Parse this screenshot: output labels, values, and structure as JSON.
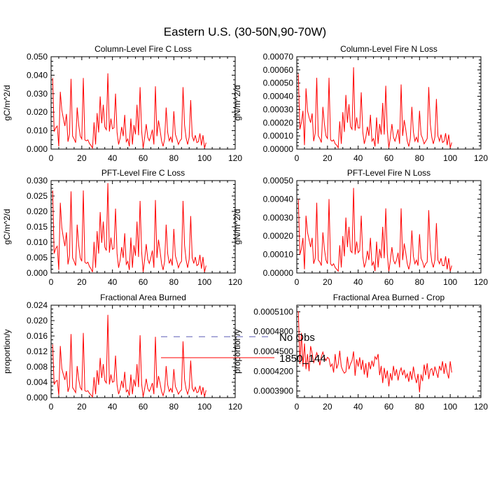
{
  "figure_title": "Eastern U.S. (30-50N,90-70W)",
  "legend": {
    "entries": [
      {
        "label": "No Obs",
        "color": "#5a5ab4",
        "style": "dashed"
      },
      {
        "label": "1850_144",
        "color": "#ff0000",
        "style": "solid"
      }
    ]
  },
  "colors": {
    "series": "#ff0000",
    "axis": "#000000",
    "background": "#ffffff"
  },
  "chart_data": [
    {
      "type": "line",
      "title": "Column-Level Fire C Loss",
      "ylabel": "gC/m^2/d",
      "xlabel": "",
      "xlim": [
        0,
        120
      ],
      "xticks": [
        0,
        20,
        40,
        60,
        80,
        100,
        120
      ],
      "xtick_labels": [
        "0",
        "20",
        "40",
        "60",
        "80",
        "100",
        "120"
      ],
      "ylim": [
        0,
        0.05
      ],
      "yticks": [
        0,
        0.01,
        0.02,
        0.03,
        0.04,
        0.05
      ],
      "ytick_labels": [
        "0.000",
        "0.010",
        "0.020",
        "0.030",
        "0.040",
        "0.050"
      ],
      "series": [
        {
          "name": "1850_144",
          "x_start": 1,
          "values": [
            0.0385,
            0.0095,
            0.0115,
            0.0125,
            0.0015,
            0.031,
            0.021,
            0.0165,
            0.0125,
            0.019,
            0.004,
            0.008,
            0.038,
            0.007,
            0.0055,
            0.0035,
            0.0225,
            0.013,
            0.007,
            0.0055,
            0.0385,
            0.005,
            0.0045,
            0.005,
            0.003,
            0.002,
            0.0005,
            0.0145,
            0.0025,
            0.0195,
            0.009,
            0.0285,
            0.014,
            0.024,
            0.012,
            0.0105,
            0.041,
            0.0095,
            0.0165,
            0.011,
            0.0115,
            0.03,
            0.009,
            0.0025,
            0.006,
            0.012,
            0.007,
            0.0185,
            0.004,
            0.0055,
            0.0015,
            0.0165,
            0.0025,
            0.013,
            0.008,
            0.024,
            0.0075,
            0.0335,
            0.01,
            0.0005,
            0.0065,
            0.0135,
            0.0065,
            0.0045,
            0.007,
            0.0105,
            0.0025,
            0.034,
            0.007,
            0.0155,
            0.0105,
            0.0045,
            0.0015,
            0.0055,
            0.0225,
            0.009,
            0.0045,
            0.0065,
            0.0035,
            0.0205,
            0.008,
            0.0055,
            0.0025,
            0.0045,
            0.0055,
            0.0335,
            0.013,
            0.006,
            0.0025,
            0.0065,
            0.0265,
            0.007,
            0.0045,
            0.0075,
            0.0035,
            0.004,
            0.0085,
            0.002,
            0.0075,
            0.0005,
            0.0035
          ]
        }
      ]
    },
    {
      "type": "line",
      "title": "Column-Level Fire N Loss",
      "ylabel": "gN/m^2/d",
      "xlabel": "",
      "xlim": [
        0,
        120
      ],
      "xticks": [
        0,
        20,
        40,
        60,
        80,
        100,
        120
      ],
      "xtick_labels": [
        "0",
        "20",
        "40",
        "60",
        "80",
        "100",
        "120"
      ],
      "ylim": [
        0,
        0.0007
      ],
      "yticks": [
        0,
        0.0001,
        0.0002,
        0.0003,
        0.0004,
        0.0005,
        0.0006,
        0.0007
      ],
      "ytick_labels": [
        "0.00000",
        "0.00010",
        "0.00020",
        "0.00030",
        "0.00040",
        "0.00050",
        "0.00060",
        "0.00070"
      ],
      "series": [
        {
          "name": "1850_144",
          "x_start": 1,
          "values": [
            0.00057,
            0.00015,
            0.0002,
            0.00029,
            3e-05,
            0.00046,
            0.00029,
            0.00024,
            0.0002,
            0.00027,
            6e-05,
            0.00012,
            0.00054,
            0.0001,
            8e-05,
            5e-05,
            0.00032,
            0.00019,
            0.0001,
            8e-05,
            0.00054,
            7e-05,
            6e-05,
            7e-05,
            4e-05,
            3e-05,
            1e-05,
            0.00021,
            4e-05,
            0.00028,
            0.00013,
            0.00041,
            0.0002,
            0.00034,
            0.00017,
            0.00015,
            0.00062,
            0.00014,
            0.00024,
            0.00016,
            0.00016,
            0.00043,
            0.00013,
            4e-05,
            9e-05,
            0.00017,
            0.0001,
            0.00026,
            6e-05,
            8e-05,
            2e-05,
            0.00024,
            4e-05,
            0.00019,
            0.00011,
            0.00035,
            0.00011,
            0.00048,
            0.00014,
            1e-05,
            9e-05,
            0.00019,
            9e-05,
            6e-05,
            0.0001,
            0.00015,
            4e-05,
            0.00049,
            0.0001,
            0.00022,
            0.00015,
            6e-05,
            2e-05,
            8e-05,
            0.00032,
            0.00013,
            6e-05,
            9e-05,
            5e-05,
            0.00029,
            0.00011,
            8e-05,
            4e-05,
            6e-05,
            8e-05,
            0.00047,
            0.00019,
            9e-05,
            4e-05,
            9e-05,
            0.00038,
            0.0001,
            6e-05,
            0.00011,
            5e-05,
            6e-05,
            0.00012,
            3e-05,
            0.00011,
            1e-05,
            5e-05
          ]
        }
      ]
    },
    {
      "type": "line",
      "title": "PFT-Level Fire C Loss",
      "ylabel": "gC/m^2/d",
      "xlabel": "",
      "xlim": [
        0,
        120
      ],
      "xticks": [
        0,
        20,
        40,
        60,
        80,
        100,
        120
      ],
      "xtick_labels": [
        "0",
        "20",
        "40",
        "60",
        "80",
        "100",
        "120"
      ],
      "ylim": [
        0,
        0.03
      ],
      "yticks": [
        0,
        0.005,
        0.01,
        0.015,
        0.02,
        0.025,
        0.03
      ],
      "ytick_labels": [
        "0.000",
        "0.005",
        "0.010",
        "0.015",
        "0.020",
        "0.025",
        "0.030"
      ],
      "series": [
        {
          "name": "1850_144",
          "x_start": 1,
          "values": [
            0.0268,
            0.0063,
            0.008,
            0.0087,
            0.001,
            0.0228,
            0.0146,
            0.0114,
            0.0087,
            0.0132,
            0.0028,
            0.0056,
            0.0265,
            0.0049,
            0.0038,
            0.0024,
            0.0157,
            0.009,
            0.0049,
            0.0038,
            0.0268,
            0.0035,
            0.0031,
            0.0035,
            0.0021,
            0.0014,
            0.0003,
            0.0101,
            0.0017,
            0.0136,
            0.0063,
            0.0198,
            0.0098,
            0.0167,
            0.0084,
            0.0073,
            0.0292,
            0.0066,
            0.0115,
            0.0077,
            0.008,
            0.0209,
            0.0063,
            0.0017,
            0.0042,
            0.0084,
            0.0049,
            0.0129,
            0.0028,
            0.0038,
            0.001,
            0.0115,
            0.0017,
            0.009,
            0.0056,
            0.0167,
            0.0052,
            0.0234,
            0.007,
            0.0003,
            0.0045,
            0.0094,
            0.0045,
            0.0031,
            0.0049,
            0.0073,
            0.0017,
            0.0237,
            0.0049,
            0.0108,
            0.0073,
            0.0031,
            0.001,
            0.0038,
            0.0157,
            0.0063,
            0.0031,
            0.0045,
            0.0024,
            0.0143,
            0.0056,
            0.0038,
            0.0017,
            0.0031,
            0.0038,
            0.0234,
            0.009,
            0.0042,
            0.0017,
            0.0045,
            0.0185,
            0.0049,
            0.0031,
            0.0052,
            0.0024,
            0.0028,
            0.0059,
            0.0014,
            0.0052,
            0.0003,
            0.0024
          ]
        }
      ]
    },
    {
      "type": "line",
      "title": "PFT-Level Fire N Loss",
      "ylabel": "gN/m^2/d",
      "xlabel": "",
      "xlim": [
        0,
        120
      ],
      "xticks": [
        0,
        20,
        40,
        60,
        80,
        100,
        120
      ],
      "xtick_labels": [
        "0",
        "20",
        "40",
        "60",
        "80",
        "100",
        "120"
      ],
      "ylim": [
        0,
        0.0005
      ],
      "yticks": [
        0,
        0.0001,
        0.0002,
        0.0003,
        0.0004,
        0.0005
      ],
      "ytick_labels": [
        "0.00000",
        "0.00010",
        "0.00020",
        "0.00030",
        "0.00040",
        "0.00050"
      ],
      "series": [
        {
          "name": "1850_144",
          "x_start": 1,
          "values": [
            0.0004,
            0.0001,
            0.00013,
            0.00019,
            2e-05,
            0.00031,
            0.00022,
            0.00018,
            0.00014,
            0.00019,
            5e-05,
            8e-05,
            0.00038,
            7e-05,
            6e-05,
            4e-05,
            0.00022,
            0.00013,
            7e-05,
            5e-05,
            0.0004,
            5e-05,
            4e-05,
            5e-05,
            3e-05,
            2e-05,
            1e-05,
            0.00015,
            3e-05,
            0.0002,
            9e-05,
            0.0003,
            0.00014,
            0.00025,
            0.00012,
            0.00011,
            0.00046,
            0.0001,
            0.00017,
            0.00011,
            0.00012,
            0.00031,
            9e-05,
            3e-05,
            6e-05,
            0.00012,
            7e-05,
            0.00019,
            4e-05,
            6e-05,
            1e-05,
            0.00017,
            3e-05,
            0.00013,
            8e-05,
            0.00025,
            8e-05,
            0.00035,
            0.0001,
            1e-05,
            7e-05,
            0.00014,
            7e-05,
            5e-05,
            7e-05,
            0.00011,
            3e-05,
            0.00035,
            7e-05,
            0.00016,
            0.00011,
            5e-05,
            2e-05,
            6e-05,
            0.00023,
            9e-05,
            5e-05,
            7e-05,
            4e-05,
            0.00021,
            8e-05,
            6e-05,
            3e-05,
            5e-05,
            6e-05,
            0.00034,
            0.00013,
            6e-05,
            3e-05,
            7e-05,
            0.00027,
            7e-05,
            5e-05,
            8e-05,
            4e-05,
            4e-05,
            9e-05,
            2e-05,
            8e-05,
            1e-05,
            4e-05
          ]
        }
      ]
    },
    {
      "type": "line",
      "title": "Fractional Area Burned",
      "ylabel": "proportion/y",
      "xlabel": "",
      "xlim": [
        0,
        120
      ],
      "xticks": [
        0,
        20,
        40,
        60,
        80,
        100,
        120
      ],
      "xtick_labels": [
        "0",
        "20",
        "40",
        "60",
        "80",
        "100",
        "120"
      ],
      "ylim": [
        0,
        0.024
      ],
      "yticks": [
        0,
        0.004,
        0.008,
        0.012,
        0.016,
        0.02,
        0.024
      ],
      "ytick_labels": [
        "0.000",
        "0.004",
        "0.008",
        "0.012",
        "0.016",
        "0.020",
        "0.024"
      ],
      "series": [
        {
          "name": "1850_144",
          "x_start": 1,
          "values": [
            0.0138,
            0.0034,
            0.0042,
            0.0045,
            0.0006,
            0.0134,
            0.0075,
            0.006,
            0.0046,
            0.0069,
            0.0015,
            0.0029,
            0.0165,
            0.0026,
            0.002,
            0.0013,
            0.0082,
            0.0047,
            0.0026,
            0.002,
            0.0168,
            0.0018,
            0.0016,
            0.0018,
            0.0011,
            0.0007,
            0.0002,
            0.0053,
            0.0009,
            0.0071,
            0.0033,
            0.0103,
            0.0051,
            0.0087,
            0.0044,
            0.0038,
            0.0215,
            0.0034,
            0.006,
            0.004,
            0.0042,
            0.0109,
            0.0033,
            0.0009,
            0.0022,
            0.0044,
            0.0025,
            0.0067,
            0.0015,
            0.002,
            0.0005,
            0.006,
            0.0009,
            0.0047,
            0.0029,
            0.0087,
            0.0027,
            0.0162,
            0.0036,
            0.0002,
            0.0024,
            0.0049,
            0.0024,
            0.0016,
            0.0025,
            0.0038,
            0.0009,
            0.0158,
            0.0025,
            0.0056,
            0.0038,
            0.0016,
            0.0005,
            0.002,
            0.0082,
            0.0033,
            0.0016,
            0.0024,
            0.0013,
            0.0074,
            0.0029,
            0.002,
            0.0009,
            0.0016,
            0.002,
            0.0146,
            0.0047,
            0.0022,
            0.0009,
            0.0024,
            0.0096,
            0.0025,
            0.0016,
            0.0027,
            0.0013,
            0.0015,
            0.0031,
            0.0007,
            0.0027,
            0.0002,
            0.0019
          ]
        }
      ]
    },
    {
      "type": "line",
      "title": "Fractional Area Burned - Crop",
      "ylabel": "proportion/y",
      "xlabel": "",
      "xlim": [
        0,
        120
      ],
      "xticks": [
        0,
        20,
        40,
        60,
        80,
        100,
        120
      ],
      "xtick_labels": [
        "0",
        "20",
        "40",
        "60",
        "80",
        "100",
        "120"
      ],
      "ylim": [
        0.00038,
        0.00052
      ],
      "yticks": [
        0.00039,
        0.00042,
        0.00045,
        0.00048,
        0.00051
      ],
      "ytick_labels": [
        "0.0003900",
        "0.0004200",
        "0.0004500",
        "0.0004800",
        "0.0005100"
      ],
      "series": [
        {
          "name": "1850_144",
          "x_start": 1,
          "values": [
            0.000511,
            0.000431,
            0.000478,
            0.000427,
            0.000462,
            0.000423,
            0.000446,
            0.00042,
            0.000458,
            0.000447,
            0.000433,
            0.000439,
            0.000448,
            0.000441,
            0.000429,
            0.000442,
            0.000449,
            0.000441,
            0.000436,
            0.000441,
            0.000439,
            0.000427,
            0.000431,
            0.000418,
            0.000446,
            0.000424,
            0.000431,
            0.000451,
            0.000427,
            0.000421,
            0.000417,
            0.000419,
            0.000442,
            0.000423,
            0.000431,
            0.000436,
            0.00045,
            0.000413,
            0.000438,
            0.000427,
            0.000441,
            0.000422,
            0.000437,
            0.000415,
            0.000432,
            0.00041,
            0.000434,
            0.000423,
            0.000436,
            0.000427,
            0.000442,
            0.000438,
            0.000446,
            0.000414,
            0.000428,
            0.000402,
            0.000425,
            0.000409,
            0.000421,
            0.000397,
            0.000417,
            0.000406,
            0.000428,
            0.000413,
            0.000423,
            0.000406,
            0.000419,
            0.000425,
            0.000414,
            0.000422,
            0.00041,
            0.000416,
            0.000404,
            0.00042,
            0.000407,
            0.000427,
            0.000412,
            0.000402,
            0.000416,
            0.000388,
            0.000415,
            0.000405,
            0.00043,
            0.000414,
            0.000432,
            0.000408,
            0.000422,
            0.000424,
            0.000413,
            0.000427,
            0.000419,
            0.00041,
            0.000428,
            0.000421,
            0.000435,
            0.000416,
            0.000432,
            0.000418,
            0.000409,
            0.000435,
            0.000418
          ]
        }
      ]
    }
  ]
}
